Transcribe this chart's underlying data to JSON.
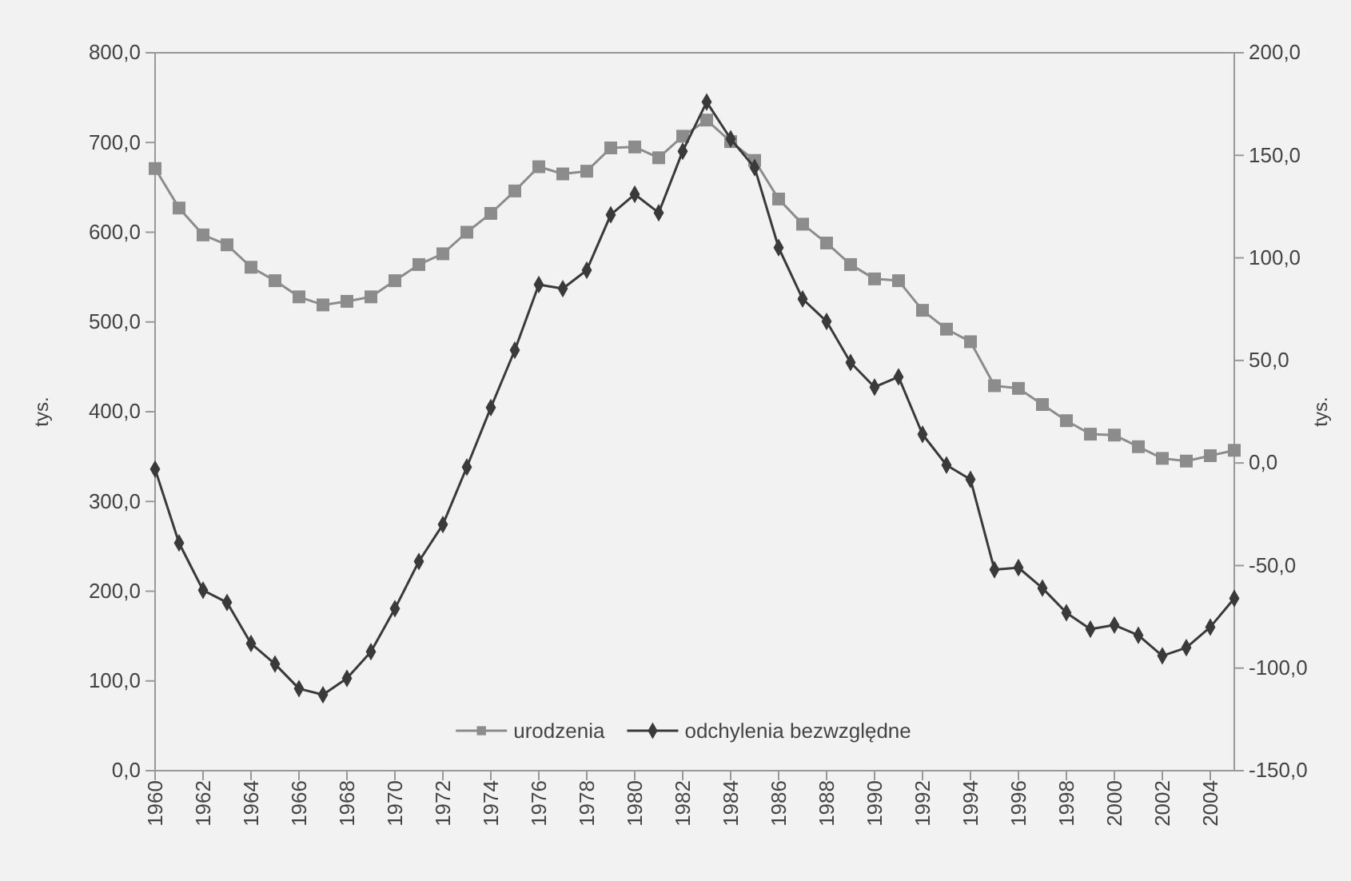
{
  "chart_data": {
    "type": "line",
    "ylabel": "tys.",
    "y2label": "tys.",
    "x": [
      1960,
      1961,
      1962,
      1963,
      1964,
      1965,
      1966,
      1967,
      1968,
      1969,
      1970,
      1971,
      1972,
      1973,
      1974,
      1975,
      1976,
      1977,
      1978,
      1979,
      1980,
      1981,
      1982,
      1983,
      1984,
      1985,
      1986,
      1987,
      1988,
      1989,
      1990,
      1991,
      1992,
      1993,
      1994,
      1995,
      1996,
      1997,
      1998,
      1999,
      2000,
      2001,
      2002,
      2003,
      2004,
      2005
    ],
    "series": [
      {
        "name": "urodzenia",
        "color": "#8c8c8c",
        "marker": "square",
        "values": [
          671,
          627,
          597,
          586,
          561,
          546,
          528,
          519,
          523,
          528,
          546,
          564,
          576,
          600,
          621,
          646,
          673,
          665,
          668,
          694,
          695,
          683,
          707,
          725,
          701,
          680,
          637,
          609,
          588,
          564,
          548,
          546,
          513,
          492,
          478,
          429,
          426,
          408,
          390,
          375,
          374,
          361,
          348,
          345,
          351,
          357
        ]
      },
      {
        "name": "odchylenia bezwzględne",
        "color": "#3a3a3a",
        "marker": "diamond",
        "axis": "y2",
        "values": [
          -3,
          -39,
          -62,
          -68,
          -88,
          -98,
          -110,
          -113,
          -105,
          -92,
          -71,
          -48,
          -30,
          -2,
          27,
          55,
          87,
          85,
          94,
          121,
          131,
          122,
          152,
          176,
          158,
          144,
          105,
          80,
          69,
          49,
          37,
          42,
          14,
          -1,
          -8,
          -52,
          -51,
          -61,
          -73,
          -81,
          -79,
          -84,
          -94,
          -90,
          -80,
          -66
        ]
      }
    ],
    "xlim": [
      1960,
      2005
    ],
    "xticks": [
      1960,
      1962,
      1964,
      1966,
      1968,
      1970,
      1972,
      1974,
      1976,
      1978,
      1980,
      1982,
      1984,
      1986,
      1988,
      1990,
      1992,
      1994,
      1996,
      1998,
      2000,
      2002,
      2004
    ],
    "ylim": [
      0,
      800
    ],
    "yticks": [
      {
        "value": 0,
        "label": "0,0"
      },
      {
        "value": 100,
        "label": "100,0"
      },
      {
        "value": 200,
        "label": "200,0"
      },
      {
        "value": 300,
        "label": "300,0"
      },
      {
        "value": 400,
        "label": "400,0"
      },
      {
        "value": 500,
        "label": "500,0"
      },
      {
        "value": 600,
        "label": "600,0"
      },
      {
        "value": 700,
        "label": "700,0"
      },
      {
        "value": 800,
        "label": "800,0"
      }
    ],
    "y2lim": [
      -150,
      200
    ],
    "y2ticks": [
      {
        "value": -150,
        "label": "-150,0"
      },
      {
        "value": -100,
        "label": "-100,0"
      },
      {
        "value": -50,
        "label": "-50,0"
      },
      {
        "value": 0,
        "label": "0,0"
      },
      {
        "value": 50,
        "label": "50,0"
      },
      {
        "value": 100,
        "label": "100,0"
      },
      {
        "value": 150,
        "label": "150,0"
      },
      {
        "value": 200,
        "label": "200,0"
      }
    ],
    "legend": "bottom",
    "grid": false,
    "line_style": "solid"
  }
}
